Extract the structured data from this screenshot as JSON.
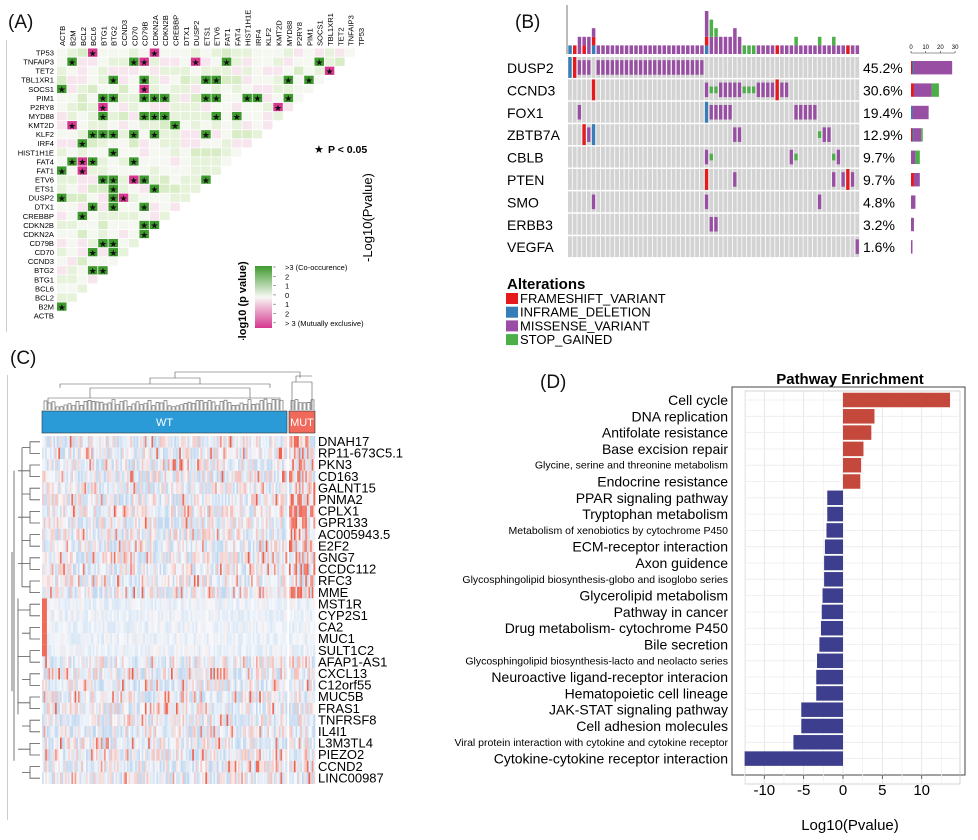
{
  "panels": {
    "a": "(A)",
    "b": "(B)",
    "c": "(C)",
    "d": "(D)"
  },
  "panel_a": {
    "genes": [
      "ACTB",
      "B2M",
      "BCL2",
      "BCL6",
      "BTG1",
      "BTG2",
      "CCND3",
      "CD70",
      "CD79B",
      "CDKN2A",
      "CDKN2B",
      "CREBBP",
      "DTX1",
      "DUSP2",
      "ETS1",
      "ETV6",
      "FAT1",
      "FAT4",
      "HIST1H1E",
      "IRF4",
      "KLF2",
      "KMT2D",
      "MYD88",
      "P2RY8",
      "PIM1",
      "SOCS1",
      "TBL1XR1",
      "TET2",
      "TNFAIP3",
      "TP53"
    ],
    "significant_pairs": [
      [
        "TP53",
        "BCL6",
        "me"
      ],
      [
        "TP53",
        "CDKN2A",
        "me"
      ],
      [
        "TNFAIP3",
        "B2M",
        "co"
      ],
      [
        "TNFAIP3",
        "CD70",
        "co"
      ],
      [
        "TNFAIP3",
        "CD79B",
        "me"
      ],
      [
        "TNFAIP3",
        "DUSP2",
        "me"
      ],
      [
        "TNFAIP3",
        "FAT1",
        "co"
      ],
      [
        "TNFAIP3",
        "SOCS1",
        "co"
      ],
      [
        "TET2",
        "TBL1XR1",
        "me"
      ],
      [
        "TBL1XR1",
        "BTG2",
        "co"
      ],
      [
        "TBL1XR1",
        "CD79B",
        "co"
      ],
      [
        "TBL1XR1",
        "ETS1",
        "co"
      ],
      [
        "TBL1XR1",
        "ETV6",
        "co"
      ],
      [
        "TBL1XR1",
        "MYD88",
        "co"
      ],
      [
        "TBL1XR1",
        "PIM1",
        "co"
      ],
      [
        "SOCS1",
        "ACTB",
        "co"
      ],
      [
        "SOCS1",
        "CD79B",
        "me"
      ],
      [
        "PIM1",
        "BTG1",
        "co"
      ],
      [
        "PIM1",
        "BTG2",
        "co"
      ],
      [
        "PIM1",
        "CD79B",
        "co"
      ],
      [
        "PIM1",
        "CDKN2A",
        "co"
      ],
      [
        "PIM1",
        "CDKN2B",
        "co"
      ],
      [
        "PIM1",
        "ETS1",
        "co"
      ],
      [
        "PIM1",
        "ETV6",
        "co"
      ],
      [
        "PIM1",
        "HIST1H1E",
        "co"
      ],
      [
        "PIM1",
        "IRF4",
        "co"
      ],
      [
        "PIM1",
        "MYD88",
        "co"
      ],
      [
        "P2RY8",
        "BTG1",
        "me"
      ],
      [
        "P2RY8",
        "KMT2D",
        "me"
      ],
      [
        "MYD88",
        "BTG1",
        "co"
      ],
      [
        "MYD88",
        "CD79B",
        "co"
      ],
      [
        "MYD88",
        "CDKN2A",
        "co"
      ],
      [
        "MYD88",
        "CDKN2B",
        "co"
      ],
      [
        "MYD88",
        "ETV6",
        "co"
      ],
      [
        "MYD88",
        "FAT4",
        "co"
      ],
      [
        "KMT2D",
        "B2M",
        "me"
      ],
      [
        "KMT2D",
        "CREBBP",
        "co"
      ],
      [
        "KLF2",
        "BCL6",
        "co"
      ],
      [
        "KLF2",
        "BTG1",
        "co"
      ],
      [
        "KLF2",
        "BTG2",
        "co"
      ],
      [
        "KLF2",
        "CD70",
        "co"
      ],
      [
        "KLF2",
        "CDKN2A",
        "co"
      ],
      [
        "KLF2",
        "ETS1",
        "co"
      ],
      [
        "IRF4",
        "BCL2",
        "co"
      ],
      [
        "HIST1H1E",
        "BTG2",
        "co"
      ],
      [
        "FAT4",
        "B2M",
        "co"
      ],
      [
        "FAT4",
        "BCL2",
        "me"
      ],
      [
        "FAT4",
        "BCL6",
        "co"
      ],
      [
        "FAT4",
        "CD70",
        "co"
      ],
      [
        "FAT1",
        "ACTB",
        "co"
      ],
      [
        "FAT1",
        "BCL2",
        "me"
      ],
      [
        "ETV6",
        "BTG1",
        "co"
      ],
      [
        "ETV6",
        "BTG2",
        "co"
      ],
      [
        "ETV6",
        "CD70",
        "me"
      ],
      [
        "ETV6",
        "CD79B",
        "co"
      ],
      [
        "ETV6",
        "ETS1",
        "co"
      ],
      [
        "ETS1",
        "BTG2",
        "co"
      ],
      [
        "ETS1",
        "CDKN2A",
        "co"
      ],
      [
        "DUSP2",
        "ACTB",
        "co"
      ],
      [
        "DUSP2",
        "BTG2",
        "co"
      ],
      [
        "DUSP2",
        "CCND3",
        "me"
      ],
      [
        "DTX1",
        "BCL6",
        "co"
      ],
      [
        "DTX1",
        "BTG2",
        "co"
      ],
      [
        "DTX1",
        "CD79B",
        "co"
      ],
      [
        "CREBBP",
        "BCL2",
        "co"
      ],
      [
        "CDKN2B",
        "CD79B",
        "co"
      ],
      [
        "CDKN2B",
        "CDKN2A",
        "co"
      ],
      [
        "CDKN2A",
        "CD79B",
        "co"
      ],
      [
        "CD79B",
        "BTG1",
        "co"
      ],
      [
        "CD79B",
        "BTG2",
        "co"
      ],
      [
        "CD70",
        "BCL6",
        "co"
      ],
      [
        "CD70",
        "BTG2",
        "co"
      ],
      [
        "BTG2",
        "BCL6",
        "co"
      ],
      [
        "BTG2",
        "BTG1",
        "co"
      ],
      [
        "B2M",
        "ACTB",
        "co"
      ]
    ],
    "significance_note": "P < 0.05",
    "star_symbol": "★",
    "side_axis_label": "-Log10(Pvalue)",
    "legend": {
      "title": "-log10 (p value)",
      "labels": [
        ">3 (Co-occurence)",
        "2",
        "1",
        "0",
        "1",
        "2",
        "> 3 (Mutually exclusive)"
      ]
    },
    "colors": {
      "co_occurrence": "#3f9a2e",
      "mutually_exclusive": "#d6388f",
      "neutral": "#f4f6f0"
    }
  },
  "panel_b": {
    "n_samples": 62,
    "genes": [
      {
        "name": "DUSP2",
        "pct": "45.2%",
        "alterations": [
          [
            0,
            "I"
          ],
          [
            1,
            "F"
          ],
          [
            2,
            "M"
          ],
          [
            3,
            "M"
          ],
          [
            4,
            "M"
          ],
          [
            6,
            "M"
          ],
          [
            7,
            "M"
          ],
          [
            8,
            "M"
          ],
          [
            9,
            "M"
          ],
          [
            10,
            "M"
          ],
          [
            11,
            "M"
          ],
          [
            12,
            "M"
          ],
          [
            13,
            "M"
          ],
          [
            14,
            "M"
          ],
          [
            15,
            "M"
          ],
          [
            16,
            "M"
          ],
          [
            17,
            "M"
          ],
          [
            18,
            "M"
          ],
          [
            19,
            "M"
          ],
          [
            20,
            "M"
          ],
          [
            21,
            "M"
          ],
          [
            22,
            "M"
          ],
          [
            23,
            "M"
          ],
          [
            24,
            "M"
          ],
          [
            25,
            "M"
          ],
          [
            26,
            "M"
          ],
          [
            27,
            "M"
          ],
          [
            28,
            "M"
          ]
        ]
      },
      {
        "name": "CCND3",
        "pct": "30.6%",
        "alterations": [
          [
            5,
            "F"
          ],
          [
            29,
            "M"
          ],
          [
            30,
            "S"
          ],
          [
            31,
            "S"
          ],
          [
            32,
            "M"
          ],
          [
            33,
            "M"
          ],
          [
            34,
            "M"
          ],
          [
            35,
            "M"
          ],
          [
            36,
            "M"
          ],
          [
            37,
            "S"
          ],
          [
            38,
            "S"
          ],
          [
            39,
            "S"
          ],
          [
            40,
            "M"
          ],
          [
            41,
            "M"
          ],
          [
            42,
            "M"
          ],
          [
            43,
            "M"
          ],
          [
            44,
            "F"
          ],
          [
            45,
            "M"
          ],
          [
            46,
            "M"
          ]
        ]
      },
      {
        "name": "FOX1",
        "pct": "19.4%",
        "alterations": [
          [
            2,
            "M"
          ],
          [
            29,
            "I"
          ],
          [
            30,
            "M"
          ],
          [
            31,
            "M"
          ],
          [
            32,
            "M"
          ],
          [
            33,
            "M"
          ],
          [
            34,
            "M"
          ],
          [
            48,
            "M"
          ],
          [
            49,
            "M"
          ],
          [
            50,
            "M"
          ],
          [
            51,
            "M"
          ],
          [
            52,
            "M"
          ]
        ]
      },
      {
        "name": "ZBTB7A",
        "pct": "12.9%",
        "alterations": [
          [
            3,
            "F"
          ],
          [
            4,
            "M"
          ],
          [
            5,
            "I"
          ],
          [
            35,
            "M"
          ],
          [
            36,
            "M"
          ],
          [
            53,
            "S"
          ],
          [
            54,
            "M"
          ],
          [
            55,
            "M"
          ]
        ]
      },
      {
        "name": "CBLB",
        "pct": "9.7%",
        "alterations": [
          [
            29,
            "M"
          ],
          [
            30,
            "S"
          ],
          [
            47,
            "M"
          ],
          [
            48,
            "S"
          ],
          [
            56,
            "S"
          ],
          [
            57,
            "M"
          ]
        ]
      },
      {
        "name": "PTEN",
        "pct": "9.7%",
        "alterations": [
          [
            29,
            "F"
          ],
          [
            35,
            "M"
          ],
          [
            56,
            "M"
          ],
          [
            58,
            "M"
          ],
          [
            59,
            "F"
          ],
          [
            60,
            "M"
          ]
        ]
      },
      {
        "name": "SMO",
        "pct": "4.8%",
        "alterations": [
          [
            5,
            "M"
          ],
          [
            29,
            "M"
          ],
          [
            53,
            "M"
          ]
        ]
      },
      {
        "name": "ERBB3",
        "pct": "3.2%",
        "alterations": [
          [
            30,
            "M"
          ],
          [
            31,
            "M"
          ]
        ]
      },
      {
        "name": "VEGFA",
        "pct": "1.6%",
        "alterations": [
          [
            61,
            "M"
          ]
        ]
      }
    ],
    "right_axis_ticks": [
      "0",
      "10",
      "20",
      "30"
    ],
    "legend": {
      "title": "Alterations",
      "items": [
        {
          "code": "F",
          "label": "FRAMESHIFT_VARIANT",
          "color": "#e41a1c"
        },
        {
          "code": "I",
          "label": "INFRAME_DELETION",
          "color": "#377eb8"
        },
        {
          "code": "M",
          "label": "MISSENSE_VARIANT",
          "color": "#984ea3"
        },
        {
          "code": "S",
          "label": "STOP_GAINED",
          "color": "#4daf4a"
        }
      ]
    },
    "background_color": "#d3d3d3"
  },
  "panel_c": {
    "groups": [
      {
        "label": "WT",
        "color": "#2b9bd8"
      },
      {
        "label": "MUT",
        "color": "#f0695b"
      }
    ],
    "genes": [
      "DNAH17",
      "RP11-673C5.1",
      "PKN3",
      "CD163",
      "GALNT15",
      "PNMA2",
      "CPLX1",
      "GPR133",
      "AC005943.5",
      "E2F2",
      "GNG7",
      "CCDC112",
      "RFC3",
      "MME",
      "MST1R",
      "CYP2S1",
      "CA2",
      "MUC1",
      "SULT1C2",
      "AFAP1-AS1",
      "CXCL13",
      "C12orf55",
      "MUC5B",
      "FRAS1",
      "TNFRSF8",
      "IL4I1",
      "L3M3TL4",
      "PIEZO2",
      "CCND2",
      "LINC00987"
    ],
    "colors": {
      "low": "#4a8fd4",
      "mid": "#f7f9fc",
      "high": "#ef5a45"
    }
  },
  "chart_data": {
    "type": "bar",
    "orientation": "horizontal",
    "title": "Pathway Enrichment",
    "xlabel": "Log10(Pvalue)",
    "ylabel": "",
    "xlim": [
      -13.5,
      15
    ],
    "xticks": [
      "-10",
      "-5",
      "0",
      "5",
      "10"
    ],
    "grid": true,
    "categories": [
      "Cell cycle",
      "DNA replication",
      "Antifolate resistance",
      "Base excision repair",
      "Glycine, serine and threonine metabolism",
      "Endocrine resistance",
      "PPAR signaling pathway",
      "Tryptophan metabolism",
      "Metabolism of xenobiotics by cytochrome P450",
      "ECM-receptor interaction",
      "Axon guidence",
      "Glycosphingolipid biosynthesis-globo and isoglobo series",
      "Glycerolipid metabolism",
      "Pathway in cancer",
      "Drug metabolism- cytochrome P450",
      "Bile secretion",
      "Glycosphingolipid biosynthesis-lacto and neolacto series",
      "Neuroactive ligand-receptor interacion",
      "Hematopoietic cell lineage",
      "JAK-STAT signaling pathway",
      "Cell adhesion molecules",
      "Viral protein interaction with cytokine and cytokine receptor",
      "Cytokine-cytokine receptor interaction"
    ],
    "small_label_categories": [
      "Glycine, serine and threonine metabolism",
      "Metabolism of xenobiotics by cytochrome P450",
      "Glycosphingolipid biosynthesis-globo and isoglobo series",
      "Glycosphingolipid biosynthesis-lacto and neolacto series",
      "Viral protein interaction with cytokine and cytokine receptor"
    ],
    "values": [
      13.6,
      4.0,
      3.6,
      2.6,
      2.3,
      2.2,
      -2.0,
      -2.0,
      -2.1,
      -2.3,
      -2.4,
      -2.4,
      -2.6,
      -2.7,
      -2.8,
      -3.0,
      -3.3,
      -3.4,
      -3.4,
      -5.3,
      -5.3,
      -6.3,
      -12.5
    ],
    "colors": {
      "positive": "#c4483b",
      "negative": "#3d3f8e"
    }
  }
}
